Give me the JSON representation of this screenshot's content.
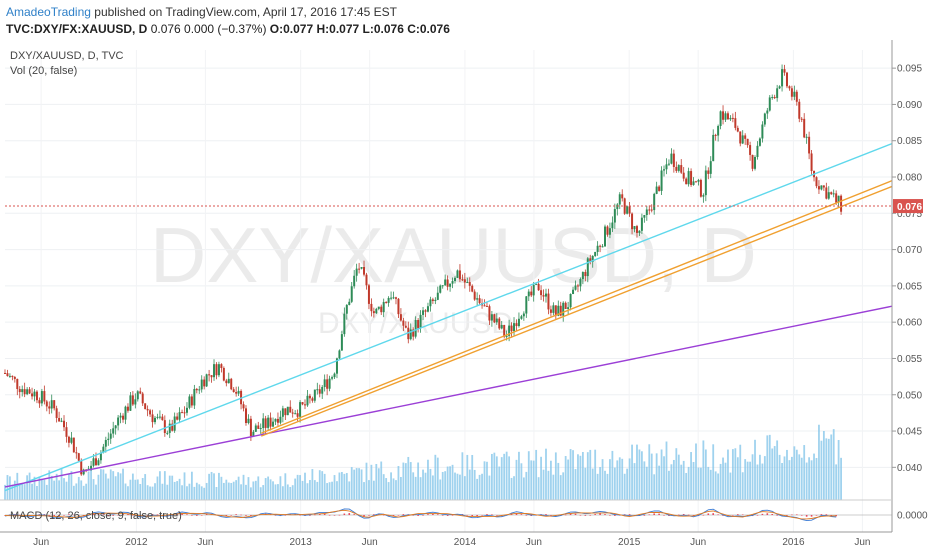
{
  "header": {
    "author": "AmadeoTrading",
    "published": "published on TradingView.com, April 17, 2016 17:45 EST",
    "symbol": "TVC:DXY/FX:XAUUSD, D",
    "quote": "0.076 0.000 (−0.37%)",
    "ohlc": "O:0.077 H:0.077 L:0.076 C:0.076"
  },
  "chart_data": {
    "type": "candlestick",
    "pane_labels": {
      "main": "DXY/XAUUSD, D, TVC",
      "volume": "Vol (20, false)",
      "macd": "MACD (12, 26, close, 9, false, true)"
    },
    "watermark": {
      "large": "DXY/XAUUSD, D",
      "small": "DXY/XAUUSD"
    },
    "y_ticks": [
      "0.095",
      "0.090",
      "0.085",
      "0.080",
      "0.075",
      "0.070",
      "0.065",
      "0.060",
      "0.055",
      "0.050",
      "0.045",
      "0.040"
    ],
    "ylim": [
      0.0355,
      0.0975
    ],
    "macd_tick": "0.0000",
    "last_price": "0.076",
    "x_ticks": [
      {
        "label": "Jun",
        "t": 2011.42
      },
      {
        "label": "2012",
        "t": 2012.0
      },
      {
        "label": "Jun",
        "t": 2012.42
      },
      {
        "label": "2013",
        "t": 2013.0
      },
      {
        "label": "Jun",
        "t": 2013.42
      },
      {
        "label": "2014",
        "t": 2014.0
      },
      {
        "label": "Jun",
        "t": 2014.42
      },
      {
        "label": "2015",
        "t": 2015.0
      },
      {
        "label": "Jun",
        "t": 2015.42
      },
      {
        "label": "2016",
        "t": 2016.0
      },
      {
        "label": "Jun",
        "t": 2016.42
      }
    ],
    "xlim": [
      2011.2,
      2016.6
    ],
    "series_points": [
      {
        "t": 2011.2,
        "v": 0.053
      },
      {
        "t": 2011.3,
        "v": 0.051
      },
      {
        "t": 2011.4,
        "v": 0.05
      },
      {
        "t": 2011.5,
        "v": 0.048
      },
      {
        "t": 2011.6,
        "v": 0.044
      },
      {
        "t": 2011.68,
        "v": 0.039
      },
      {
        "t": 2011.78,
        "v": 0.042
      },
      {
        "t": 2011.9,
        "v": 0.047
      },
      {
        "t": 2012.0,
        "v": 0.05
      },
      {
        "t": 2012.1,
        "v": 0.047
      },
      {
        "t": 2012.2,
        "v": 0.045
      },
      {
        "t": 2012.3,
        "v": 0.048
      },
      {
        "t": 2012.4,
        "v": 0.052
      },
      {
        "t": 2012.5,
        "v": 0.054
      },
      {
        "t": 2012.6,
        "v": 0.051
      },
      {
        "t": 2012.7,
        "v": 0.045
      },
      {
        "t": 2012.8,
        "v": 0.046
      },
      {
        "t": 2012.9,
        "v": 0.048
      },
      {
        "t": 2013.0,
        "v": 0.048
      },
      {
        "t": 2013.1,
        "v": 0.05
      },
      {
        "t": 2013.2,
        "v": 0.053
      },
      {
        "t": 2013.28,
        "v": 0.062
      },
      {
        "t": 2013.35,
        "v": 0.068
      },
      {
        "t": 2013.45,
        "v": 0.061
      },
      {
        "t": 2013.55,
        "v": 0.064
      },
      {
        "t": 2013.65,
        "v": 0.058
      },
      {
        "t": 2013.75,
        "v": 0.061
      },
      {
        "t": 2013.85,
        "v": 0.064
      },
      {
        "t": 2013.95,
        "v": 0.067
      },
      {
        "t": 2014.05,
        "v": 0.064
      },
      {
        "t": 2014.15,
        "v": 0.061
      },
      {
        "t": 2014.25,
        "v": 0.058
      },
      {
        "t": 2014.35,
        "v": 0.062
      },
      {
        "t": 2014.45,
        "v": 0.065
      },
      {
        "t": 2014.55,
        "v": 0.061
      },
      {
        "t": 2014.65,
        "v": 0.063
      },
      {
        "t": 2014.75,
        "v": 0.068
      },
      {
        "t": 2014.85,
        "v": 0.072
      },
      {
        "t": 2014.95,
        "v": 0.077
      },
      {
        "t": 2015.05,
        "v": 0.072
      },
      {
        "t": 2015.15,
        "v": 0.077
      },
      {
        "t": 2015.25,
        "v": 0.083
      },
      {
        "t": 2015.35,
        "v": 0.08
      },
      {
        "t": 2015.45,
        "v": 0.078
      },
      {
        "t": 2015.55,
        "v": 0.089
      },
      {
        "t": 2015.65,
        "v": 0.087
      },
      {
        "t": 2015.75,
        "v": 0.082
      },
      {
        "t": 2015.85,
        "v": 0.09
      },
      {
        "t": 2015.93,
        "v": 0.094
      },
      {
        "t": 2016.0,
        "v": 0.091
      },
      {
        "t": 2016.05,
        "v": 0.088
      },
      {
        "t": 2016.12,
        "v": 0.08
      },
      {
        "t": 2016.2,
        "v": 0.078
      },
      {
        "t": 2016.29,
        "v": 0.076
      }
    ],
    "volume_levels": [
      {
        "t": 2011.2,
        "v": 0.2
      },
      {
        "t": 2011.7,
        "v": 0.25
      },
      {
        "t": 2012.2,
        "v": 0.22
      },
      {
        "t": 2012.8,
        "v": 0.2
      },
      {
        "t": 2013.3,
        "v": 0.28
      },
      {
        "t": 2013.8,
        "v": 0.35
      },
      {
        "t": 2014.3,
        "v": 0.38
      },
      {
        "t": 2014.8,
        "v": 0.42
      },
      {
        "t": 2015.3,
        "v": 0.45
      },
      {
        "t": 2015.8,
        "v": 0.48
      },
      {
        "t": 2016.1,
        "v": 0.55
      },
      {
        "t": 2016.29,
        "v": 0.62
      }
    ],
    "trendlines": [
      {
        "name": "cyan",
        "color": "#5fd8ec",
        "t1": 2011.2,
        "v1": 0.0368,
        "t2": 2016.6,
        "v2": 0.0846
      },
      {
        "name": "purple",
        "color": "#9b3fd6",
        "t1": 2011.2,
        "v1": 0.0373,
        "t2": 2016.6,
        "v2": 0.0622
      },
      {
        "name": "orange-1",
        "color": "#f0a030",
        "t1": 2012.76,
        "v1": 0.0443,
        "t2": 2016.6,
        "v2": 0.0787
      },
      {
        "name": "orange-2",
        "color": "#f0a030",
        "t1": 2012.76,
        "v1": 0.0447,
        "t2": 2016.6,
        "v2": 0.0795
      }
    ],
    "colors": {
      "up": "#2e8b57",
      "down": "#c0392b",
      "volume": "#7fc3e8",
      "price_line": "#d9534f"
    }
  }
}
